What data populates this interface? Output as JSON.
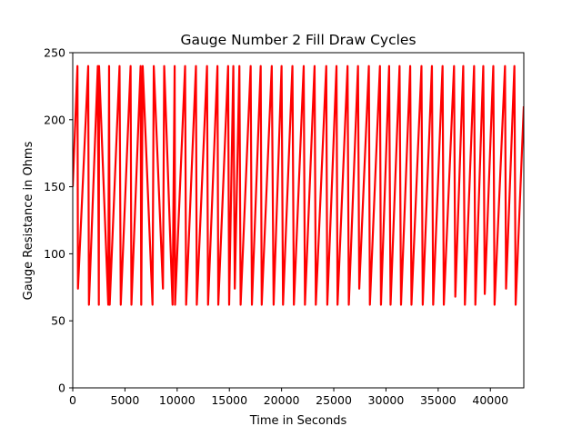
{
  "chart_data": {
    "type": "line",
    "title": "Gauge Number 2 Fill Draw Cycles",
    "xlabel": "Time in Seconds",
    "ylabel": "Gauge Resistance in Ohms",
    "xlim": [
      0,
      43200
    ],
    "ylim": [
      0,
      250
    ],
    "xticks": [
      0,
      5000,
      10000,
      15000,
      20000,
      25000,
      30000,
      35000,
      40000
    ],
    "yticks": [
      0,
      50,
      100,
      150,
      200,
      250
    ],
    "grid": false,
    "legend": "none",
    "series": [
      {
        "color": "#ff0000",
        "x": [
          0,
          450,
          500,
          1480,
          1550,
          2400,
          2500,
          2520,
          3400,
          3480,
          3540,
          4480,
          4600,
          5540,
          5620,
          6500,
          6560,
          6700,
          7640,
          7760,
          8640,
          8760,
          9560,
          9760,
          9800,
          10760,
          10860,
          11800,
          11880,
          12860,
          12960,
          13860,
          13940,
          14880,
          14980,
          15380,
          15520,
          15960,
          16080,
          17040,
          17160,
          18000,
          18100,
          19060,
          19240,
          20000,
          20140,
          21040,
          21180,
          22120,
          22240,
          23160,
          23280,
          24280,
          24380,
          25260,
          25360,
          26320,
          26440,
          27320,
          27440,
          28360,
          28460,
          29420,
          29520,
          30300,
          30440,
          31300,
          31440,
          32320,
          32440,
          33400,
          33520,
          34400,
          34520,
          35420,
          35540,
          36520,
          36640,
          37400,
          37560,
          38440,
          38560,
          39320,
          39460,
          40280,
          40400,
          41400,
          41500,
          42300,
          42420,
          43200
        ],
        "y": [
          150,
          240,
          74,
          240,
          62,
          240,
          62,
          240,
          62,
          240,
          62,
          240,
          62,
          240,
          62,
          240,
          62,
          240,
          62,
          240,
          74,
          240,
          62,
          240,
          62,
          240,
          62,
          240,
          62,
          240,
          62,
          240,
          62,
          240,
          62,
          240,
          74,
          240,
          62,
          240,
          62,
          240,
          62,
          240,
          62,
          240,
          62,
          240,
          62,
          240,
          62,
          240,
          62,
          240,
          62,
          240,
          62,
          240,
          62,
          240,
          74,
          240,
          62,
          240,
          62,
          240,
          62,
          240,
          62,
          240,
          62,
          240,
          62,
          240,
          62,
          240,
          62,
          240,
          68,
          240,
          62,
          240,
          62,
          240,
          70,
          240,
          62,
          240,
          74,
          240,
          62,
          210
        ]
      }
    ]
  }
}
